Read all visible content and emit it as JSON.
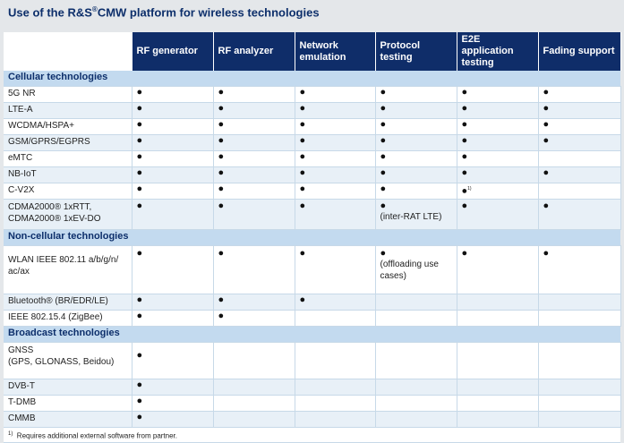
{
  "title": {
    "text": "Use of the R&S",
    "sup": "®",
    "rest": "CMW platform for wireless technologies"
  },
  "columns": [
    "RF generator",
    "RF analyzer",
    "Network emulation",
    "Protocol testing",
    "E2E application testing",
    "Fading support"
  ],
  "dot": "●",
  "sections": [
    {
      "name": "Cellular technologies",
      "rows": [
        {
          "tech": "5G NR",
          "marks": [
            "●",
            "●",
            "●",
            "●",
            "●",
            "●"
          ]
        },
        {
          "tech": "LTE-A",
          "marks": [
            "●",
            "●",
            "●",
            "●",
            "●",
            "●"
          ]
        },
        {
          "tech": "WCDMA/HSPA+",
          "marks": [
            "●",
            "●",
            "●",
            "●",
            "●",
            "●"
          ]
        },
        {
          "tech": "GSM/GPRS/EGPRS",
          "marks": [
            "●",
            "●",
            "●",
            "●",
            "●",
            "●"
          ]
        },
        {
          "tech": "eMTC",
          "marks": [
            "●",
            "●",
            "●",
            "●",
            "●",
            ""
          ]
        },
        {
          "tech": "NB-IoT",
          "marks": [
            "●",
            "●",
            "●",
            "●",
            "●",
            "●"
          ]
        },
        {
          "tech": "C-V2X",
          "marks": [
            "●",
            "●",
            "●",
            "●",
            "●",
            ""
          ],
          "e2e_sup": "1)"
        },
        {
          "tech_line1": "CDMA2000® 1xRTT,",
          "tech_line2": "CDMA2000® 1xEV-DO",
          "marks": [
            "●",
            "●",
            "●",
            "●",
            "●",
            "●"
          ],
          "protocol_note": "(inter-RAT LTE)"
        }
      ]
    },
    {
      "name": "Non-cellular technologies",
      "rows": [
        {
          "tech_line1": "WLAN IEEE 802.11 a/b/g/n/",
          "tech_line2": "ac/ax",
          "marks": [
            "●",
            "●",
            "●",
            "●",
            "●",
            "●"
          ],
          "protocol_note_line1": "(offloading use",
          "protocol_note_line2": "cases)"
        },
        {
          "tech": "Bluetooth® (BR/EDR/LE)",
          "marks": [
            "●",
            "●",
            "●",
            "",
            "",
            ""
          ]
        },
        {
          "tech": "IEEE 802.15.4 (ZigBee)",
          "marks": [
            "●",
            "●",
            "",
            "",
            "",
            ""
          ]
        }
      ]
    },
    {
      "name": "Broadcast technologies",
      "rows": [
        {
          "tech_line1": "GNSS",
          "tech_line2": "(GPS, GLONASS, Beidou)",
          "marks": [
            "●",
            "",
            "",
            "",
            "",
            ""
          ]
        },
        {
          "tech": "DVB-T",
          "marks": [
            "●",
            "",
            "",
            "",
            "",
            ""
          ]
        },
        {
          "tech": "T-DMB",
          "marks": [
            "●",
            "",
            "",
            "",
            "",
            ""
          ]
        },
        {
          "tech": "CMMB",
          "marks": [
            "●",
            "",
            "",
            "",
            "",
            ""
          ]
        }
      ]
    }
  ],
  "footnote": {
    "sup": "1)",
    "text": "Requires additional external software from partner."
  }
}
